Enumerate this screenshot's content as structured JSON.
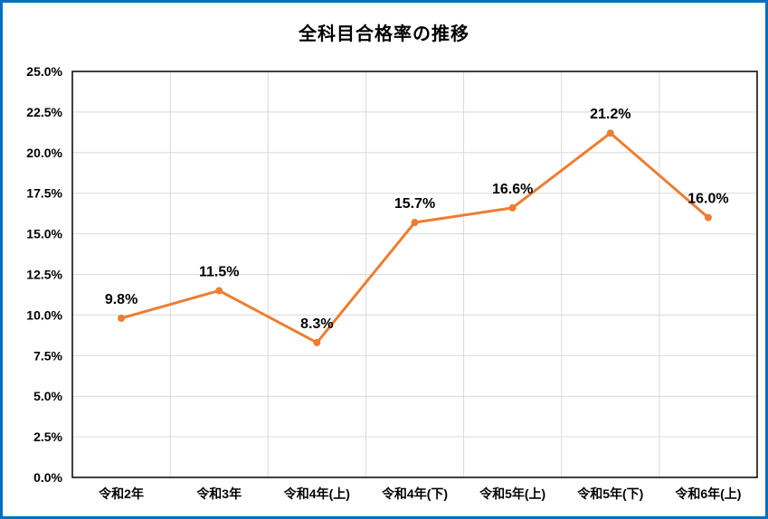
{
  "page": {
    "border_color": "#0070C0",
    "background_color": "#FFFFFF"
  },
  "chart_data": {
    "type": "line",
    "title": "全科目合格率の推移",
    "categories": [
      "令和2年",
      "令和3年",
      "令和4年(上)",
      "令和4年(下)",
      "令和5年(上)",
      "令和5年(下)",
      "令和6年(上)"
    ],
    "series": [
      {
        "name": "全科目合格率",
        "values": [
          9.8,
          11.5,
          8.3,
          15.7,
          16.6,
          21.2,
          16.0
        ],
        "data_labels": [
          "9.8%",
          "11.5%",
          "8.3%",
          "15.7%",
          "16.6%",
          "21.2%",
          "16.0%"
        ]
      }
    ],
    "xlabel": "",
    "ylabel": "",
    "ylim": [
      0,
      25
    ],
    "ytick_step": 2.5,
    "ytick_labels": [
      "0.0%",
      "2.5%",
      "5.0%",
      "7.5%",
      "10.0%",
      "12.5%",
      "15.0%",
      "17.5%",
      "20.0%",
      "22.5%",
      "25.0%"
    ],
    "grid": true,
    "legend": "none",
    "line_color": "#ED7D31",
    "marker": "circle",
    "gridline_color": "#D9D9D9",
    "axis_border_color": "#000000",
    "text_color": "#000000"
  }
}
